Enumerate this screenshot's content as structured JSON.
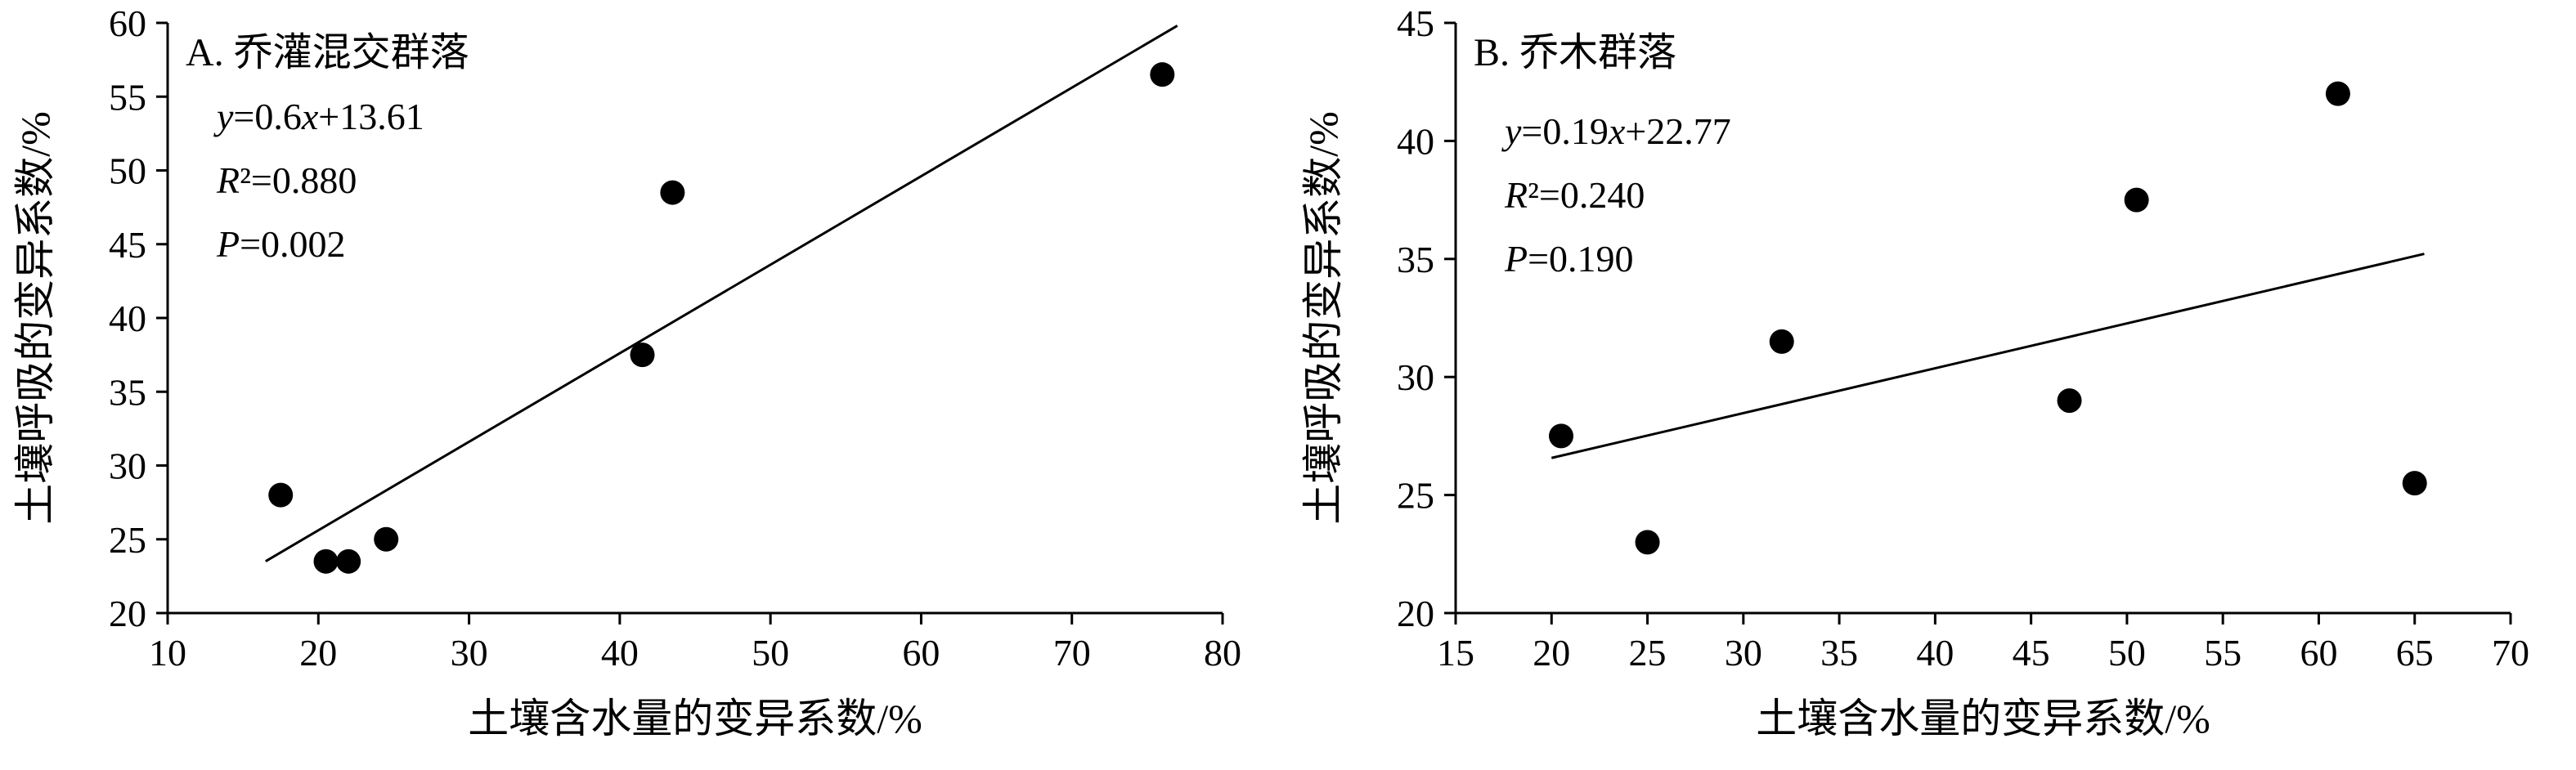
{
  "page": {
    "background": "#ffffff",
    "foreground": "#000000"
  },
  "chart_data": [
    {
      "id": "panel-a",
      "type": "scatter",
      "panel_label": "A. 乔灌混交群落",
      "annotations": [
        "y=0.6x+13.61",
        "R²=0.880",
        "P=0.002"
      ],
      "xlabel": "土壤含水量的变异系数/%",
      "ylabel": "土壤呼吸的变异系数/%",
      "xlim": [
        10,
        80
      ],
      "ylim": [
        20,
        60
      ],
      "xticks": [
        10,
        20,
        30,
        40,
        50,
        60,
        70,
        80
      ],
      "yticks": [
        20,
        25,
        30,
        35,
        40,
        45,
        50,
        55,
        60
      ],
      "points": [
        [
          17.5,
          28
        ],
        [
          20.5,
          23.5
        ],
        [
          22,
          23.5
        ],
        [
          24.5,
          25
        ],
        [
          41.5,
          37.5
        ],
        [
          43.5,
          48.5
        ],
        [
          76,
          56.5
        ]
      ],
      "regression": {
        "equation": "y=0.6x+13.61",
        "slope": 0.6,
        "intercept": 13.61,
        "r_squared": 0.88,
        "p_value": 0.002,
        "x_start": 16.5,
        "x_end": 77
      },
      "grid": false,
      "legend": "none",
      "point_color": "#000000",
      "line_color": "#000000",
      "annotation_extra_offset": 0
    },
    {
      "id": "panel-b",
      "type": "scatter",
      "panel_label": "B. 乔木群落",
      "annotations": [
        "y=0.19x+22.77",
        "R²=0.240",
        "P=0.190"
      ],
      "xlabel": "土壤含水量的变异系数/%",
      "ylabel": "土壤呼吸的变异系数/%",
      "xlim": [
        15,
        70
      ],
      "ylim": [
        20,
        45
      ],
      "xticks": [
        15,
        20,
        25,
        30,
        35,
        40,
        45,
        50,
        55,
        60,
        65,
        70
      ],
      "yticks": [
        20,
        25,
        30,
        35,
        40,
        45
      ],
      "points": [
        [
          20.5,
          27.5
        ],
        [
          25,
          23
        ],
        [
          32,
          31.5
        ],
        [
          47,
          29
        ],
        [
          50.5,
          37.5
        ],
        [
          61,
          42
        ],
        [
          65,
          25.5
        ]
      ],
      "regression": {
        "equation": "y=0.19x+22.77",
        "slope": 0.19,
        "intercept": 22.77,
        "r_squared": 0.24,
        "p_value": 0.19,
        "x_start": 20,
        "x_end": 65.5
      },
      "grid": false,
      "legend": "none",
      "point_color": "#000000",
      "line_color": "#000000",
      "annotation_extra_offset": 18
    }
  ]
}
